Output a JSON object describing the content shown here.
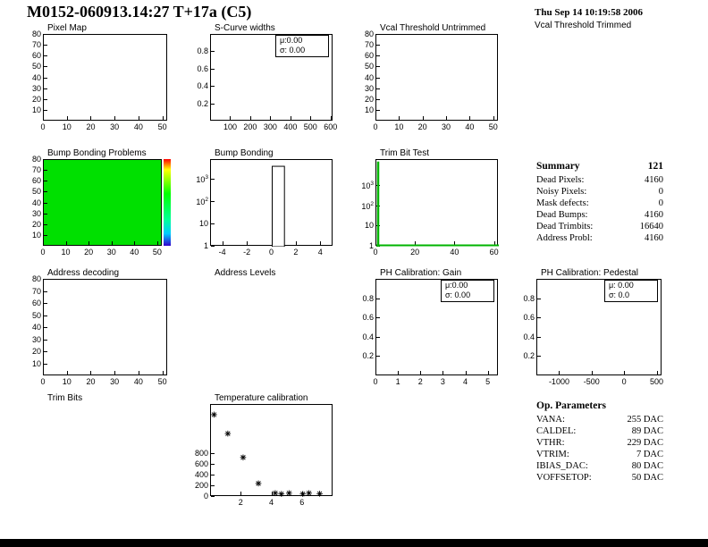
{
  "header": {
    "title": "M0152-060913.14:27 T+17a (C5)",
    "datetime": "Thu Sep 14 10:19:58 2006",
    "trimmed_label": "Vcal Threshold Trimmed"
  },
  "summary": {
    "title": "Summary",
    "value": "121",
    "rows": [
      {
        "label": "Dead Pixels:",
        "value": "4160"
      },
      {
        "label": "Noisy Pixels:",
        "value": "0"
      },
      {
        "label": "Mask defects:",
        "value": "0"
      },
      {
        "label": "Dead Bumps:",
        "value": "4160"
      },
      {
        "label": "Dead Trimbits:",
        "value": "16640"
      },
      {
        "label": "Address Probl:",
        "value": "4160"
      }
    ]
  },
  "op_parameters": {
    "title": "Op. Parameters",
    "rows": [
      {
        "label": "VANA:",
        "value": "255 DAC"
      },
      {
        "label": "CALDEL:",
        "value": "89 DAC"
      },
      {
        "label": "VTHR:",
        "value": "229 DAC"
      },
      {
        "label": "VTRIM:",
        "value": "7 DAC"
      },
      {
        "label": "IBIAS_DAC:",
        "value": "80 DAC"
      },
      {
        "label": "VOFFSETOP:",
        "value": "50 DAC"
      }
    ]
  },
  "colors": {
    "map_fill": "#00e000",
    "trim_line": "#00b400",
    "axis": "#000000"
  },
  "chart_data": [
    {
      "id": "pixel_map",
      "type": "heatmap",
      "title": "Pixel Map",
      "empty": true,
      "x": {
        "min": 0,
        "max": 52,
        "ticks": [
          0,
          10,
          20,
          30,
          40,
          50
        ]
      },
      "y": {
        "min": 0,
        "max": 80,
        "ticks": [
          10,
          20,
          30,
          40,
          50,
          60,
          70,
          80
        ]
      }
    },
    {
      "id": "scurve_widths",
      "type": "bar",
      "title": "S-Curve widths",
      "empty": true,
      "stats": [
        "μ:0.00",
        "σ: 0.00"
      ],
      "x": {
        "min": 0,
        "max": 610,
        "ticks": [
          100,
          200,
          300,
          400,
          500,
          600
        ]
      },
      "y": {
        "min": 0,
        "max": 1,
        "ticks": [
          0.2,
          0.4,
          0.6,
          0.8
        ]
      }
    },
    {
      "id": "vcal_threshold_untrimmed",
      "type": "heatmap",
      "title": "Vcal Threshold Untrimmed",
      "empty": true,
      "x": {
        "min": 0,
        "max": 52,
        "ticks": [
          0,
          10,
          20,
          30,
          40,
          50
        ]
      },
      "y": {
        "min": 0,
        "max": 80,
        "ticks": [
          10,
          20,
          30,
          40,
          50,
          60,
          70,
          80
        ]
      }
    },
    {
      "id": "bump_bonding_problems",
      "type": "heatmap",
      "title": "Bump Bonding Problems",
      "fill": "#00e000",
      "palette": [
        "#ff0000",
        "#ffff00",
        "#00ff00",
        "#00ff99",
        "#00ccff",
        "#3300cc"
      ],
      "x": {
        "min": 0,
        "max": 52,
        "ticks": [
          0,
          10,
          20,
          30,
          40,
          50
        ]
      },
      "y": {
        "min": 0,
        "max": 80,
        "ticks": [
          10,
          20,
          30,
          40,
          50,
          60,
          70,
          80
        ]
      }
    },
    {
      "id": "bump_bonding",
      "type": "bar",
      "title": "Bump Bonding",
      "bars": [
        {
          "x0": 0,
          "x1": 1,
          "value": 4160
        }
      ],
      "x": {
        "min": -5,
        "max": 5,
        "ticks": [
          -4,
          -2,
          0,
          2,
          4
        ]
      },
      "y": {
        "log": true,
        "min": 1,
        "max": 8000,
        "ticks": [
          1,
          10,
          100,
          1000
        ]
      }
    },
    {
      "id": "trim_bit_test",
      "type": "line",
      "title": "Trim Bit Test",
      "vline": {
        "x": 0.5,
        "value": 16640,
        "color": "#00b400"
      },
      "baseline": {
        "color": "#00b400"
      },
      "x": {
        "min": 0,
        "max": 62,
        "ticks": [
          0,
          20,
          40,
          60
        ]
      },
      "y": {
        "log": true,
        "min": 1,
        "max": 20000,
        "ticks": [
          1,
          10,
          100,
          1000
        ]
      }
    },
    {
      "id": "address_decoding",
      "type": "heatmap",
      "title": "Address decoding",
      "empty": true,
      "x": {
        "min": 0,
        "max": 52,
        "ticks": [
          0,
          10,
          20,
          30,
          40,
          50
        ]
      },
      "y": {
        "min": 0,
        "max": 80,
        "ticks": [
          10,
          20,
          30,
          40,
          50,
          60,
          70,
          80
        ]
      }
    },
    {
      "id": "address_levels",
      "type": "bar",
      "title": "Address Levels",
      "empty": true,
      "no_frame": true
    },
    {
      "id": "ph_gain",
      "type": "bar",
      "title": "PH Calibration: Gain",
      "empty": true,
      "stats": [
        "μ:0.00",
        "σ: 0.00"
      ],
      "x": {
        "min": 0,
        "max": 5.45,
        "ticks": [
          0,
          1,
          2,
          3,
          4,
          5
        ]
      },
      "y": {
        "min": 0,
        "max": 1,
        "ticks": [
          0.2,
          0.4,
          0.6,
          0.8
        ]
      }
    },
    {
      "id": "ph_pedestal",
      "type": "bar",
      "title": "PH Calibration: Pedestal",
      "empty": true,
      "stats": [
        "μ: 0.00",
        "σ: 0.0"
      ],
      "x": {
        "min": -1350,
        "max": 575,
        "ticks": [
          -1000,
          -500,
          0,
          500
        ]
      },
      "y": {
        "min": 0,
        "max": 1,
        "ticks": [
          0.2,
          0.4,
          0.6,
          0.8
        ]
      }
    },
    {
      "id": "trim_bits",
      "type": "heatmap",
      "title": "Trim Bits",
      "empty": true,
      "no_frame": true
    },
    {
      "id": "temperature_calibration",
      "type": "scatter",
      "title": "Temperature calibration",
      "marker": "asterisk",
      "points": [
        [
          0.2,
          1520
        ],
        [
          1.1,
          1170
        ],
        [
          2.1,
          730
        ],
        [
          3.1,
          250
        ],
        [
          4.2,
          70
        ],
        [
          4.6,
          55
        ],
        [
          5.1,
          70
        ],
        [
          6.0,
          55
        ],
        [
          6.4,
          70
        ],
        [
          7.1,
          60
        ]
      ],
      "x": {
        "min": 0,
        "max": 8,
        "ticks": [
          2,
          4,
          6
        ]
      },
      "y": {
        "min": 0,
        "max": 1700,
        "ticks": [
          0,
          200,
          400,
          600,
          800
        ]
      }
    }
  ]
}
